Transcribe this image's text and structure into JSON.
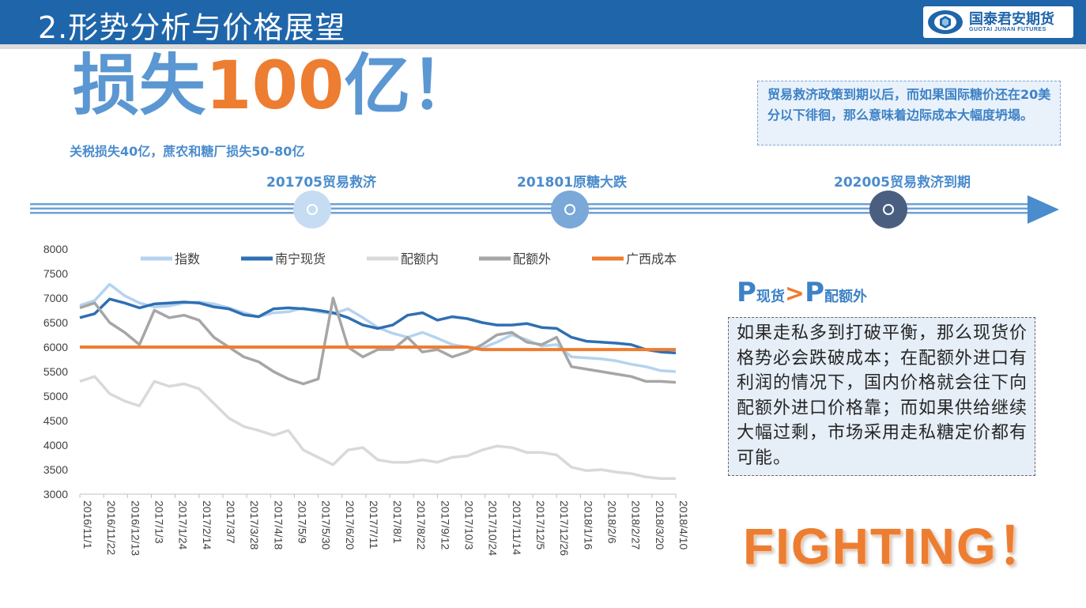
{
  "header": {
    "title": "2.形势分析与价格展望",
    "logo_cn": "国泰君安期货",
    "logo_en": "GUOTAI JUNAN FUTURES",
    "bg_color": "#1f65aa"
  },
  "headline": {
    "prefix": "损失",
    "number": "100",
    "suffix": "亿！",
    "sub": "关税损失40亿，蔗农和糖厂损失50-80亿"
  },
  "policy_note": "贸易救济政策到期以后，而如果国际糖价还在20美分以下徘徊，那么意味着边际成本大幅度坍塌。",
  "timeline": {
    "events": [
      {
        "label": "201705贸易救济",
        "color": "#c6dcf2"
      },
      {
        "label": "201801原糖大跌",
        "color": "#7aa8d8"
      },
      {
        "label": "202005贸易救济到期",
        "color": "#4a5f80"
      }
    ]
  },
  "price_relation": {
    "p1": "P",
    "s1": "现货",
    "gt": ">",
    "p2": "P",
    "s2": "配额外"
  },
  "explanation": "如果走私多到打破平衡，那么现货价格势必会跌破成本；在配额外进口有利润的情况下，国内价格就会往下向配额外进口价格靠；而如果供给继续大幅过剩，市场采用走私糖定价都有可能。",
  "slogan": "FIGHTING！",
  "chart_data": {
    "type": "line",
    "ylim": [
      3000,
      8000
    ],
    "yticks": [
      3000,
      3500,
      4000,
      4500,
      5000,
      5500,
      6000,
      6500,
      7000,
      7500,
      8000
    ],
    "xticks": [
      "2016/11/1",
      "2016/11/22",
      "2016/12/13",
      "2017/1/3",
      "2017/1/24",
      "2017/2/14",
      "2017/3/7",
      "2017/3/28",
      "2017/4/18",
      "2017/5/9",
      "2017/5/30",
      "2017/6/20",
      "2017/7/11",
      "2017/8/1",
      "2017/8/22",
      "2017/9/12",
      "2017/10/3",
      "2017/10/24",
      "2017/11/14",
      "2017/12/5",
      "2017/12/26",
      "2018/1/16",
      "2018/2/6",
      "2018/2/27",
      "2018/3/20",
      "2018/4/10"
    ],
    "legend_position": "top",
    "series": [
      {
        "name": "指数",
        "color": "#b4d3ef",
        "width": 3.5,
        "values": [
          6850,
          6950,
          7280,
          7050,
          6900,
          6820,
          6840,
          6900,
          6920,
          6880,
          6800,
          6700,
          6620,
          6700,
          6720,
          6800,
          6720,
          6680,
          6780,
          6600,
          6400,
          6280,
          6200,
          6300,
          6180,
          6050,
          6000,
          5980,
          6100,
          6250,
          6150,
          6020,
          6050,
          5800,
          5780,
          5760,
          5720,
          5650,
          5600,
          5520,
          5500
        ]
      },
      {
        "name": "南宁现货",
        "color": "#2f6fb3",
        "width": 3.5,
        "values": [
          6600,
          6680,
          6980,
          6900,
          6800,
          6880,
          6900,
          6920,
          6900,
          6820,
          6780,
          6660,
          6620,
          6780,
          6800,
          6780,
          6750,
          6700,
          6600,
          6450,
          6380,
          6450,
          6650,
          6700,
          6550,
          6620,
          6580,
          6500,
          6450,
          6450,
          6480,
          6400,
          6380,
          6200,
          6120,
          6100,
          6080,
          6050,
          5950,
          5900,
          5880
        ]
      },
      {
        "name": "配额内",
        "color": "#d9d9d9",
        "width": 3.5,
        "values": [
          5300,
          5400,
          5050,
          4900,
          4800,
          5300,
          5200,
          5250,
          5150,
          4850,
          4550,
          4380,
          4300,
          4200,
          4300,
          3900,
          3750,
          3600,
          3900,
          3950,
          3700,
          3650,
          3650,
          3700,
          3650,
          3750,
          3780,
          3900,
          3980,
          3950,
          3850,
          3850,
          3800,
          3550,
          3480,
          3500,
          3450,
          3420,
          3350,
          3320,
          3320
        ]
      },
      {
        "name": "配额外",
        "color": "#a6a6a6",
        "width": 3.5,
        "values": [
          6800,
          6900,
          6500,
          6300,
          6050,
          6750,
          6600,
          6650,
          6550,
          6200,
          6000,
          5800,
          5700,
          5500,
          5350,
          5250,
          5350,
          7000,
          6000,
          5800,
          5950,
          5950,
          6200,
          5900,
          5950,
          5800,
          5900,
          6050,
          6250,
          6300,
          6100,
          6050,
          6200,
          5600,
          5550,
          5500,
          5450,
          5400,
          5300,
          5300,
          5280
        ]
      },
      {
        "name": "广西成本",
        "color": "#ed7d31",
        "width": 4,
        "values": [
          6000,
          6000,
          6000,
          6000,
          6000,
          6000,
          6000,
          6000,
          6000,
          6000,
          6000,
          6000,
          6000,
          6000,
          6000,
          6000,
          6000,
          6000,
          6000,
          6000,
          6000,
          6000,
          6000,
          6000,
          6000,
          6000,
          6000,
          5950,
          5950,
          5950,
          5950,
          5950,
          5950,
          5950,
          5950,
          5950,
          5950,
          5950,
          5950,
          5950,
          5950
        ]
      }
    ]
  }
}
